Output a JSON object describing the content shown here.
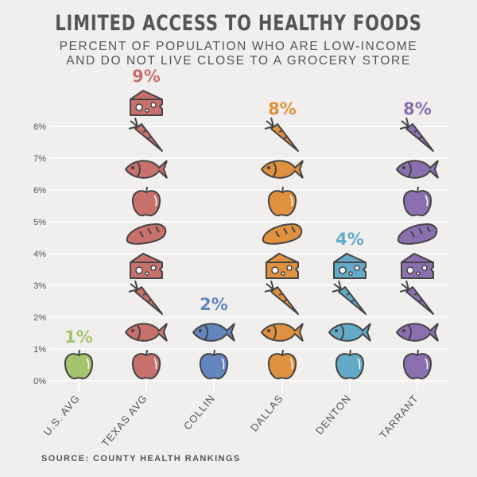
{
  "chart_data": {
    "type": "pictogram-bar",
    "title": "LIMITED ACCESS TO HEALTHY FOODS",
    "subtitle_lines": [
      "PERCENT OF POPULATION WHO ARE LOW-INCOME",
      "AND DO NOT LIVE CLOSE TO A GROCERY STORE"
    ],
    "source": "SOURCE: COUNTY HEALTH RANKINGS",
    "y_ticks": [
      "0%",
      "1%",
      "2%",
      "3%",
      "4%",
      "5%",
      "6%",
      "7%",
      "8%"
    ],
    "ylim": [
      0,
      8
    ],
    "grid": true,
    "icon_cycle": [
      "apple-icon",
      "fish-icon",
      "carrot-icon",
      "cheese-icon",
      "bread-icon"
    ],
    "categories": [
      "U.S. AVG",
      "TEXAS AVG",
      "COLLIN",
      "DALLAS",
      "DENTON",
      "TARRANT"
    ],
    "values": [
      1,
      9,
      2,
      8,
      4,
      8
    ],
    "value_labels": [
      "1%",
      "9%",
      "2%",
      "8%",
      "4%",
      "8%"
    ],
    "colors": [
      "#a3c46c",
      "#c8716c",
      "#6386bf",
      "#e0913f",
      "#62aac8",
      "#8b70b0"
    ]
  }
}
